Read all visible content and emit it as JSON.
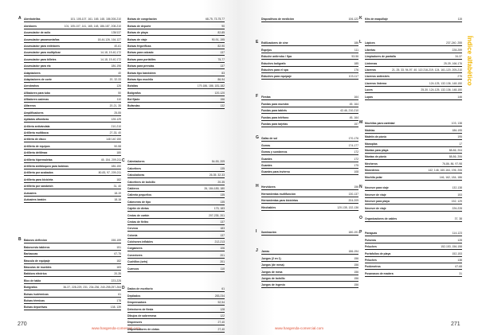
{
  "left_page": {
    "page_number": "270",
    "url": "www.hasgenda-comercial.com",
    "columns": [
      [
        {
          "letter": "A",
          "items": [
            [
              "Abrebotellas",
              "101, 105-107, 161, 165, 148, 186 208-210"
            ],
            [
              "Abridores",
              "101, 105-107, 141, 165, 148, 186-187, 208-210"
            ],
            [
              "Acumulador de acilo",
              "135/137"
            ],
            [
              "Acumulador pasamontañas",
              "18-44,126, 164,127"
            ],
            [
              "Acumulador para extintores",
              "40-61"
            ],
            [
              "Acumulador para multiplicar",
              "14-18, 19-40,172"
            ],
            [
              "Acumulador para billetes",
              "14-18, 19-40,172"
            ],
            [
              "Acumulador para etc",
              "186-196"
            ],
            [
              "Adaptadores",
              "40"
            ],
            [
              "Adaptadores de corte",
              "20, 32-33"
            ],
            [
              "Aerobrahos",
              "126"
            ],
            [
              "Afiladores para tubo",
              "50"
            ],
            [
              "Afiladores cadenas",
              "110"
            ],
            [
              "Alfareros",
              "20-21, 35"
            ],
            [
              "Amplificadores",
              "25-55"
            ],
            [
              "Apiladas alfombras",
              "128-129"
            ],
            [
              "Artilería antivándala",
              "210-210"
            ],
            [
              "Artillería multiboca",
              "27-33, 40"
            ],
            [
              "Artilería de disco",
              "148 140 150"
            ],
            [
              "Artillería de equipos",
              "50-58"
            ],
            [
              "Artillería deltilmax",
              "180"
            ],
            [
              "Artillería hipermaletas",
              "45, 154, 209,211"
            ],
            [
              "Artillería antibloqueo para bobinas",
              "186-150"
            ],
            [
              "Artillería por acabados",
              "80-83, 97, 209-211"
            ],
            [
              "Artillería para bicicleta",
              "182"
            ],
            [
              "Artillería por sándwich",
              "31, 40"
            ],
            [
              "Autoaires",
              "18-19"
            ],
            [
              "Autoaires beatón",
              "18-18"
            ]
          ]
        },
        {
          "letter": "B",
          "items": [
            [
              "Balones deflexión",
              "158-159"
            ],
            [
              "Baloncesto tableros",
              "151"
            ],
            [
              "Barbacoas",
              "67-75"
            ],
            [
              "Báscula de equipaje",
              "182"
            ],
            [
              "Básculas de muebles",
              "183"
            ],
            [
              "Batidora eléctrica",
              "20-35"
            ],
            [
              "Bloc de tabla",
              "223-225"
            ],
            [
              "Bolígrafos",
              "36-37, 228-229, 231, 234-236, 240-255,257-264"
            ],
            [
              "Bolsas isotérmicas",
              "61"
            ],
            [
              "Bolsas térmicas",
              "178"
            ],
            [
              "Bolsas deportivas",
              "138, 139"
            ]
          ]
        }
      ],
      [
        {
          "letter": "",
          "items": [
            [
              "Bolsas de congelación",
              "68-75, 73-75,77"
            ],
            [
              "Bolsas de deporte",
              "90"
            ],
            [
              "Bolsas de playa",
              "82-85"
            ],
            [
              "Bolsas de viaje",
              "90-91, 195"
            ],
            [
              "Bolsas frigoríficas",
              "82-90"
            ],
            [
              "Bolsas para calzado",
              "137"
            ],
            [
              "Bolsas para portátiles",
              "75-77"
            ],
            [
              "Bolsas para prendas",
              "137"
            ],
            [
              "Bolsas tipo bandolera",
              "83"
            ],
            [
              "Bolsas tipo mochila",
              "86-94"
            ],
            [
              "Bolsitas",
              "179-186, 186, 181-182"
            ],
            [
              "Bolígrafos",
              "120-120"
            ],
            [
              "Bol fijado",
              "156"
            ],
            [
              "Bufandas",
              "132"
            ]
          ]
        },
        {
          "letter": "C",
          "items": [
            [
              "Calentadores",
              "54-55, 209"
            ],
            [
              "Calcetines",
              "135"
            ],
            [
              "Calculadoras",
              "26-35, 32-33"
            ],
            [
              "Calcetines de bolsillo",
              "20-35"
            ],
            [
              "Calderos",
              "26, 184-185, 180"
            ],
            [
              "Calienta pequeños",
              "135"
            ],
            [
              "Cabeceras de tipo",
              "135"
            ],
            [
              "Cajetín de dietas",
              "175, 183"
            ],
            [
              "Cestas de cartón",
              "207-235, 201"
            ],
            [
              "Cestas de fieltro",
              "137"
            ],
            [
              "Cerveza",
              "183"
            ],
            [
              "Colonia",
              "137"
            ],
            [
              "Colchones inflables",
              "212-213"
            ],
            [
              "Colgadores",
              "106"
            ],
            [
              "Conectores",
              "201"
            ],
            [
              "Cuchillos (sets)",
              "201"
            ],
            [
              "Cuencos",
              "110"
            ]
          ]
        },
        {
          "letter": "D",
          "items": [
            [
              "Dados de escritorio",
              "61"
            ],
            [
              "Depilados",
              "283,234"
            ],
            [
              "Despensadora",
              "52,54"
            ],
            [
              "Detectores de fiesta",
              "128"
            ],
            [
              "Dibujos de sobremesa",
              "122"
            ],
            [
              "Dispensers",
              "27,40"
            ],
            [
              "Dispensadores de cintas",
              "27,40"
            ]
          ]
        }
      ]
    ]
  },
  "right_page": {
    "page_number": "271",
    "url": "www.hasgenda-comercial.com",
    "side_tab": "Índice alfabético",
    "columns": [
      [
        {
          "letter": "",
          "items": [
            [
              "Dispositivos de medición",
              "106-122"
            ]
          ]
        },
        {
          "letter": "E",
          "items": [
            [
              "Estilizadores de cine",
              "186"
            ],
            [
              "Espejos",
              "111"
            ],
            [
              "Estuche antirrobo / Spa",
              "53-56"
            ],
            [
              "Estuches bolígrafo",
              "185"
            ],
            [
              "Estuches para el spa",
              "176"
            ],
            [
              "Estuches para equipaje",
              "103-117"
            ]
          ]
        },
        {
          "letter": "F",
          "items": [
            [
              "Fiestas",
              "164"
            ],
            [
              "Fundas para muestra",
              "45, 164"
            ],
            [
              "Fundas para tablets",
              "42-46, 210-210"
            ],
            [
              "Fundas para teléfono",
              "45, 164"
            ],
            [
              "Fundas para tarjetas",
              "157"
            ]
          ]
        },
        {
          "letter": "G",
          "items": [
            [
              "Gafas de sol",
              "170-176"
            ],
            [
              "Gorras",
              "174-177"
            ],
            [
              "Gorras y sombreros",
              "172"
            ],
            [
              "Guantes",
              "172"
            ],
            [
              "Guantes",
              "175"
            ],
            [
              "Guantes para invierno",
              "108"
            ]
          ]
        },
        {
          "letter": "H",
          "items": [
            [
              "Hervidores",
              "156"
            ],
            [
              "Herramientas multifunción",
              "130-137"
            ],
            [
              "Herramientas para bicicletas",
              "204-209"
            ],
            [
              "Hinchables",
              "120-135, 132-136"
            ]
          ]
        },
        {
          "letter": "I",
          "items": [
            [
              "Iluminación",
              "180-191"
            ]
          ]
        },
        {
          "letter": "J",
          "items": [
            [
              "Jarras",
              "186-194"
            ],
            [
              "Juegos (2 en 1)",
              "156"
            ],
            [
              "Juegos (de mesa)",
              "156"
            ],
            [
              "Juegos de mesa",
              "156"
            ],
            [
              "Juegos de bolsillo",
              "156"
            ],
            [
              "Juegos de ingenio",
              "156"
            ]
          ]
        }
      ],
      [
        {
          "letter": "K",
          "items": [
            [
              "Kits de maquillaje",
              "115"
            ]
          ]
        },
        {
          "letter": "L",
          "items": [
            [
              "Lápices",
              "237-240, 255"
            ],
            [
              "Libretas",
              "228-259"
            ],
            [
              "Limpiadores de pantalla",
              "34-37"
            ],
            [
              "Linternas",
              "25-39, 166-176"
            ],
            [
              "Llaveros",
              "21, 25, 33, 94-97, 40, 113 216-219, 124, 161-120, 205-210"
            ],
            [
              "Llaveros antiestrés",
              "275"
            ],
            [
              "Llaveros linterna",
              "124-125, 132-136, 148-150"
            ],
            [
              "Luces",
              "25-30, 124-125, 132-136, 148-150"
            ],
            [
              "Lupas",
              "146"
            ]
          ]
        },
        {
          "letter": "M",
          "items": [
            [
              "Mochilas para cantidad",
              "103, 138"
            ],
            [
              "Maletas",
              "186-195"
            ],
            [
              "Maletín de pícnic",
              "195"
            ],
            [
              "Manoplas",
              "17"
            ],
            [
              "Mantas para playa",
              "88-86, 204"
            ],
            [
              "Mantas de picnic",
              "88-86, 206"
            ],
            [
              "Mecheros",
              "76-86, 86, 97-98"
            ],
            [
              "Monederos",
              "142, 146, 160-164, 196, 206"
            ],
            [
              "Mochila polar",
              "146, 162, 184, 186"
            ]
          ]
        },
        {
          "letter": "N",
          "items": [
            [
              "Neceser para viaje",
              "132-138"
            ],
            [
              "Neceser de viaje",
              "153"
            ],
            [
              "Neceser para playa",
              "152, 129"
            ],
            [
              "Neceser de viaje",
              "226-228"
            ]
          ]
        },
        {
          "letter": "O",
          "items": [
            [
              "Organizadores de cables",
              "37, 38"
            ]
          ]
        },
        {
          "letter": "P",
          "items": [
            [
              "Paraguas",
              "114-123"
            ],
            [
              "Pulseras",
              "128"
            ],
            [
              "Peluches",
              "152-153, 156-158"
            ],
            [
              "Portafolios de playa",
              "152-153"
            ],
            [
              "Peluches",
              "138"
            ],
            [
              "Podómetros",
              "67-68"
            ],
            [
              "Posavasos de madera",
              "31"
            ]
          ]
        }
      ]
    ]
  },
  "colors": {
    "accent": "#f2b705",
    "url": "#e0553a"
  }
}
